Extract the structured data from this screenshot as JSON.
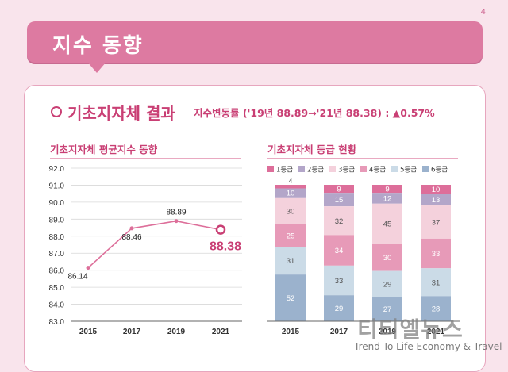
{
  "page_number": "4",
  "banner": {
    "title": "지수 동향"
  },
  "section": {
    "title": "기초지자체 결과",
    "subtitle": "지수변동률 ('19년 88.89→'21년 88.38) : ▲0.57%"
  },
  "colors": {
    "accent": "#c93f74",
    "banner": "#dd7aa1",
    "line": "#dd6f9a",
    "grade1": "#dd6e9a",
    "grade2": "#b3a6c9",
    "grade3": "#f4d1dc",
    "grade4": "#e79ab8",
    "grade5": "#cbdbe7",
    "grade6": "#9bb2cd"
  },
  "watermark": {
    "brand": "티티엘뉴스",
    "tagline": "Trend To Life Economy & Travel"
  },
  "chart_data": [
    {
      "type": "line",
      "title": "기초지자체 평균지수 동향",
      "x": [
        "2015",
        "2017",
        "2019",
        "2021"
      ],
      "series": [
        {
          "values": [
            86.14,
            88.46,
            88.89,
            88.38
          ]
        }
      ],
      "data_labels": [
        "86.14",
        "88.46",
        "88.89",
        "88.38"
      ],
      "yticks": [
        "92.0",
        "91.0",
        "90.0",
        "89.0",
        "88.0",
        "87.0",
        "86.0",
        "85.0",
        "84.0",
        "83.0"
      ],
      "ylim": [
        83,
        92
      ],
      "grid": true
    },
    {
      "type": "bar",
      "stacked": true,
      "title": "기초지자체 등급 현황",
      "categories": [
        "2015",
        "2017",
        "2019",
        "2021"
      ],
      "legend": "top",
      "series": [
        {
          "name": "1등급",
          "values": [
            4,
            9,
            9,
            10
          ]
        },
        {
          "name": "2등급",
          "values": [
            10,
            15,
            12,
            13
          ]
        },
        {
          "name": "3등급",
          "values": [
            30,
            32,
            45,
            37
          ]
        },
        {
          "name": "4등급",
          "values": [
            25,
            34,
            30,
            33
          ]
        },
        {
          "name": "5등급",
          "values": [
            31,
            33,
            29,
            31
          ]
        },
        {
          "name": "6등급",
          "values": [
            52,
            29,
            27,
            28
          ]
        }
      ]
    }
  ]
}
